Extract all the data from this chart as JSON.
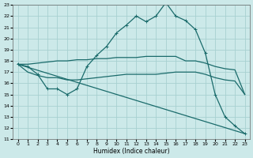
{
  "xlabel": "Humidex (Indice chaleur)",
  "xlim": [
    -0.5,
    23.5
  ],
  "ylim": [
    11,
    23
  ],
  "xticks": [
    0,
    1,
    2,
    3,
    4,
    5,
    6,
    7,
    8,
    9,
    10,
    11,
    12,
    13,
    14,
    15,
    16,
    17,
    18,
    19,
    20,
    21,
    22,
    23
  ],
  "yticks": [
    11,
    12,
    13,
    14,
    15,
    16,
    17,
    18,
    19,
    20,
    21,
    22,
    23
  ],
  "bg_color": "#cce9e9",
  "grid_color": "#a8d0d0",
  "line_color": "#1a6b6b",
  "line1_x": [
    0,
    1,
    2,
    3,
    4,
    5,
    6,
    7,
    8,
    9,
    10,
    11,
    12,
    13,
    14,
    15,
    16,
    17,
    18,
    19,
    20,
    21,
    22,
    23
  ],
  "line1_y": [
    17.7,
    17.5,
    16.8,
    15.5,
    15.5,
    15.0,
    15.5,
    17.5,
    18.5,
    19.3,
    20.5,
    21.2,
    22.0,
    21.5,
    22.0,
    23.2,
    22.0,
    21.6,
    20.8,
    18.7,
    15.0,
    13.0,
    12.2,
    11.5
  ],
  "line2_x": [
    0,
    1,
    2,
    3,
    4,
    5,
    6,
    7,
    8,
    9,
    10,
    11,
    12,
    13,
    14,
    15,
    16,
    17,
    18,
    19,
    20,
    21,
    22,
    23
  ],
  "line2_y": [
    17.7,
    17.7,
    17.8,
    17.9,
    18.0,
    18.0,
    18.1,
    18.1,
    18.2,
    18.2,
    18.3,
    18.3,
    18.3,
    18.4,
    18.4,
    18.4,
    18.4,
    18.0,
    18.0,
    17.8,
    17.5,
    17.3,
    17.2,
    15.0
  ],
  "line3_x": [
    0,
    1,
    2,
    3,
    4,
    5,
    6,
    7,
    8,
    9,
    10,
    11,
    12,
    13,
    14,
    15,
    16,
    17,
    18,
    19,
    20,
    21,
    22,
    23
  ],
  "line3_y": [
    17.7,
    17.0,
    16.7,
    16.5,
    16.5,
    16.3,
    16.3,
    16.4,
    16.5,
    16.6,
    16.7,
    16.8,
    16.8,
    16.8,
    16.8,
    16.9,
    17.0,
    17.0,
    17.0,
    16.8,
    16.5,
    16.3,
    16.2,
    15.0
  ],
  "line4_x": [
    0,
    23
  ],
  "line4_y": [
    17.7,
    11.5
  ]
}
